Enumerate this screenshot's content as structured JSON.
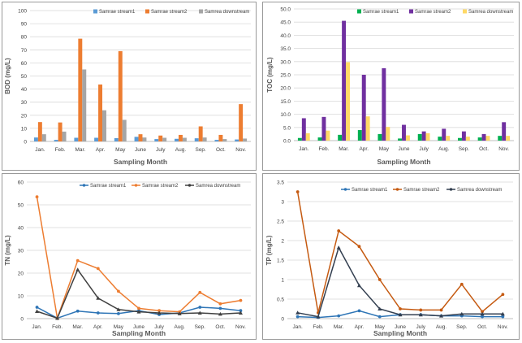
{
  "chart_data": [
    {
      "type": "bar",
      "title": "",
      "xlabel": "Sampling Month",
      "ylabel": "BOD (mg/L)",
      "ylim": [
        0,
        100
      ],
      "yticks": [
        0,
        10,
        20,
        30,
        40,
        50,
        60,
        70,
        80,
        90,
        100
      ],
      "grid": "horizontal",
      "legend_position": "top-right",
      "categories": [
        "Jan.",
        "Feb.",
        "Mar.",
        "Apr.",
        "May",
        "June",
        "July",
        "Aug.",
        "Sep.",
        "Oct.",
        "Nov."
      ],
      "series": [
        {
          "name": "Samrae stream1",
          "color": "#5b9bd5",
          "values": [
            3.0,
            1.2,
            2.8,
            2.8,
            2.5,
            3.5,
            1.8,
            2.0,
            2.4,
            1.2,
            1.5
          ]
        },
        {
          "name": "Samrae stream2",
          "color": "#ed7d31",
          "values": [
            14.8,
            14.5,
            78.5,
            43.5,
            69.0,
            5.5,
            4.5,
            5.0,
            11.5,
            5.0,
            28.5
          ]
        },
        {
          "name": "Samrea downstream",
          "color": "#a5a5a5",
          "values": [
            5.5,
            7.5,
            55.0,
            23.8,
            16.5,
            3.0,
            2.8,
            2.8,
            3.0,
            1.8,
            2.2
          ]
        }
      ]
    },
    {
      "type": "bar",
      "title": "",
      "xlabel": "Sampling Month",
      "ylabel": "TOC (mg/L)",
      "ylim": [
        0,
        50
      ],
      "yticks": [
        "0.0",
        "5.0",
        "10.0",
        "15.0",
        "20.0",
        "25.0",
        "30.0",
        "35.0",
        "40.0",
        "45.0",
        "50.0"
      ],
      "grid": "horizontal",
      "legend_position": "top-right",
      "categories": [
        "Jan.",
        "Feb.",
        "Mar.",
        "Apr.",
        "May",
        "June",
        "July",
        "Aug.",
        "Sep.",
        "Oct.",
        "Nov."
      ],
      "series": [
        {
          "name": "Samrae stream1",
          "color": "#00b050",
          "values": [
            1.0,
            1.2,
            2.2,
            4.0,
            2.5,
            0.8,
            2.5,
            1.5,
            1.0,
            1.2,
            1.8
          ]
        },
        {
          "name": "Samrae stream2",
          "color": "#7030a0",
          "values": [
            8.5,
            9.0,
            45.5,
            25.0,
            27.5,
            6.0,
            3.5,
            4.5,
            3.5,
            2.5,
            7.0
          ]
        },
        {
          "name": "Samrea downstream",
          "color": "#ffd966",
          "values": [
            2.8,
            3.8,
            29.8,
            9.2,
            5.2,
            2.0,
            2.8,
            1.8,
            1.5,
            1.8,
            1.8
          ]
        }
      ]
    },
    {
      "type": "line",
      "title": "",
      "xlabel": "Sampling Month",
      "ylabel": "TN (mg/L)",
      "ylim": [
        0,
        60
      ],
      "yticks": [
        0,
        10,
        20,
        30,
        40,
        50,
        60
      ],
      "grid": "horizontal",
      "legend_position": "top-right",
      "categories": [
        "Jan.",
        "Feb.",
        "Mar.",
        "Apr.",
        "May",
        "June",
        "July",
        "Aug.",
        "Sep.",
        "Oct.",
        "Nov."
      ],
      "series": [
        {
          "name": "Samrae stream1",
          "color": "#2e75b6",
          "values": [
            5.0,
            0.2,
            3.3,
            2.5,
            2.2,
            3.5,
            1.8,
            2.5,
            5.0,
            4.5,
            3.5
          ]
        },
        {
          "name": "Samrae stream2",
          "color": "#ed7d31",
          "values": [
            53.5,
            0.2,
            25.5,
            22.0,
            12.0,
            4.5,
            3.5,
            3.0,
            11.5,
            6.5,
            8.0
          ]
        },
        {
          "name": "Samrea downstream",
          "color": "#404040",
          "values": [
            3.2,
            0.2,
            21.5,
            9.0,
            4.0,
            3.0,
            2.5,
            2.2,
            2.5,
            2.0,
            2.5
          ]
        }
      ]
    },
    {
      "type": "line",
      "title": "",
      "xlabel": "Sampling Month",
      "ylabel": "TP (mg/L)",
      "ylim": [
        0,
        3.5
      ],
      "yticks": [
        "0",
        "0.5",
        "1",
        "1.5",
        "2",
        "2.5",
        "3",
        "3.5"
      ],
      "grid": "horizontal",
      "legend_position": "top-right",
      "categories": [
        "Jan.",
        "Feb.",
        "Mar.",
        "Apr.",
        "May",
        "June",
        "July",
        "Aug.",
        "Sep.",
        "Oct.",
        "Nov."
      ],
      "series": [
        {
          "name": "Samrae stream1",
          "color": "#2e75b6",
          "values": [
            0.05,
            0.03,
            0.07,
            0.2,
            0.05,
            0.1,
            0.1,
            0.07,
            0.07,
            0.05,
            0.05
          ]
        },
        {
          "name": "Samrae stream2",
          "color": "#c55a11",
          "values": [
            3.25,
            0.15,
            2.25,
            1.85,
            1.0,
            0.25,
            0.22,
            0.22,
            0.88,
            0.18,
            0.62
          ]
        },
        {
          "name": "Samrea downstream",
          "color": "#333f50",
          "values": [
            0.15,
            0.05,
            1.82,
            0.85,
            0.25,
            0.1,
            0.1,
            0.07,
            0.12,
            0.12,
            0.12
          ]
        }
      ]
    }
  ]
}
